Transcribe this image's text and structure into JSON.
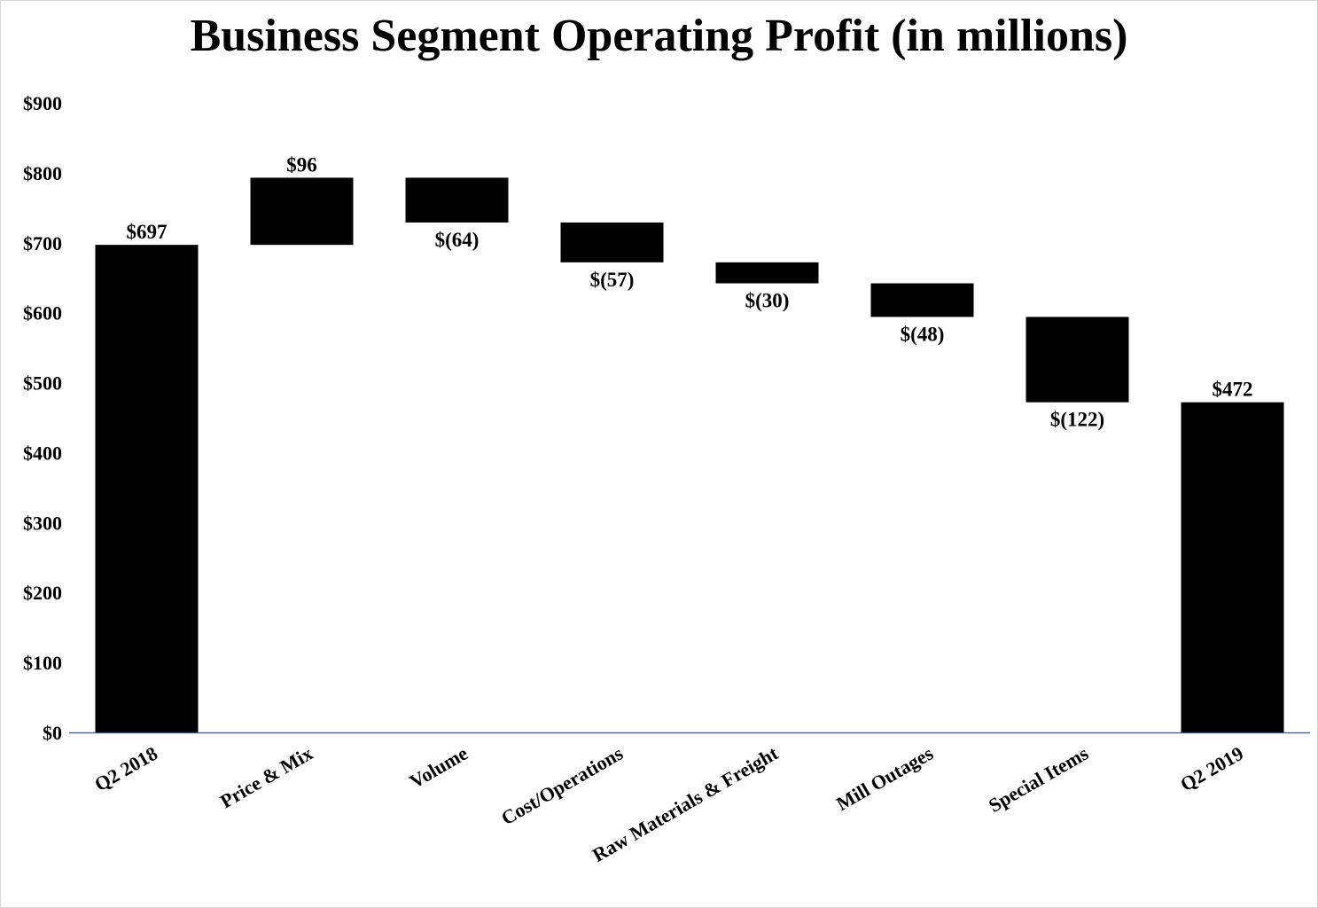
{
  "chart_data": {
    "type": "waterfall",
    "title": "Business Segment Operating Profit (in millions)",
    "xlabel": "",
    "ylabel": "",
    "ylim": [
      0,
      900
    ],
    "yticks": [
      0,
      100,
      200,
      300,
      400,
      500,
      600,
      700,
      800,
      900
    ],
    "ytick_labels": [
      "$0",
      "$100",
      "$200",
      "$300",
      "$400",
      "$500",
      "$600",
      "$700",
      "$800",
      "$900"
    ],
    "grid": false,
    "legend": "none",
    "bar_color": "#000000",
    "axis_color": "#2f5597",
    "categories": [
      "Q2 2018",
      "Price & Mix",
      "Volume",
      "Cost/Operations",
      "Raw Materials & Freight",
      "Mill Outages",
      "Special Items",
      "Q2 2019"
    ],
    "values": [
      697,
      96,
      -64,
      -57,
      -30,
      -48,
      -122,
      472
    ],
    "bar_kinds": [
      "total",
      "delta",
      "delta",
      "delta",
      "delta",
      "delta",
      "delta",
      "total"
    ],
    "data_labels": [
      "$697",
      "$96",
      "$(64)",
      "$(57)",
      "$(30)",
      "$(48)",
      "$(122)",
      "$472"
    ]
  }
}
